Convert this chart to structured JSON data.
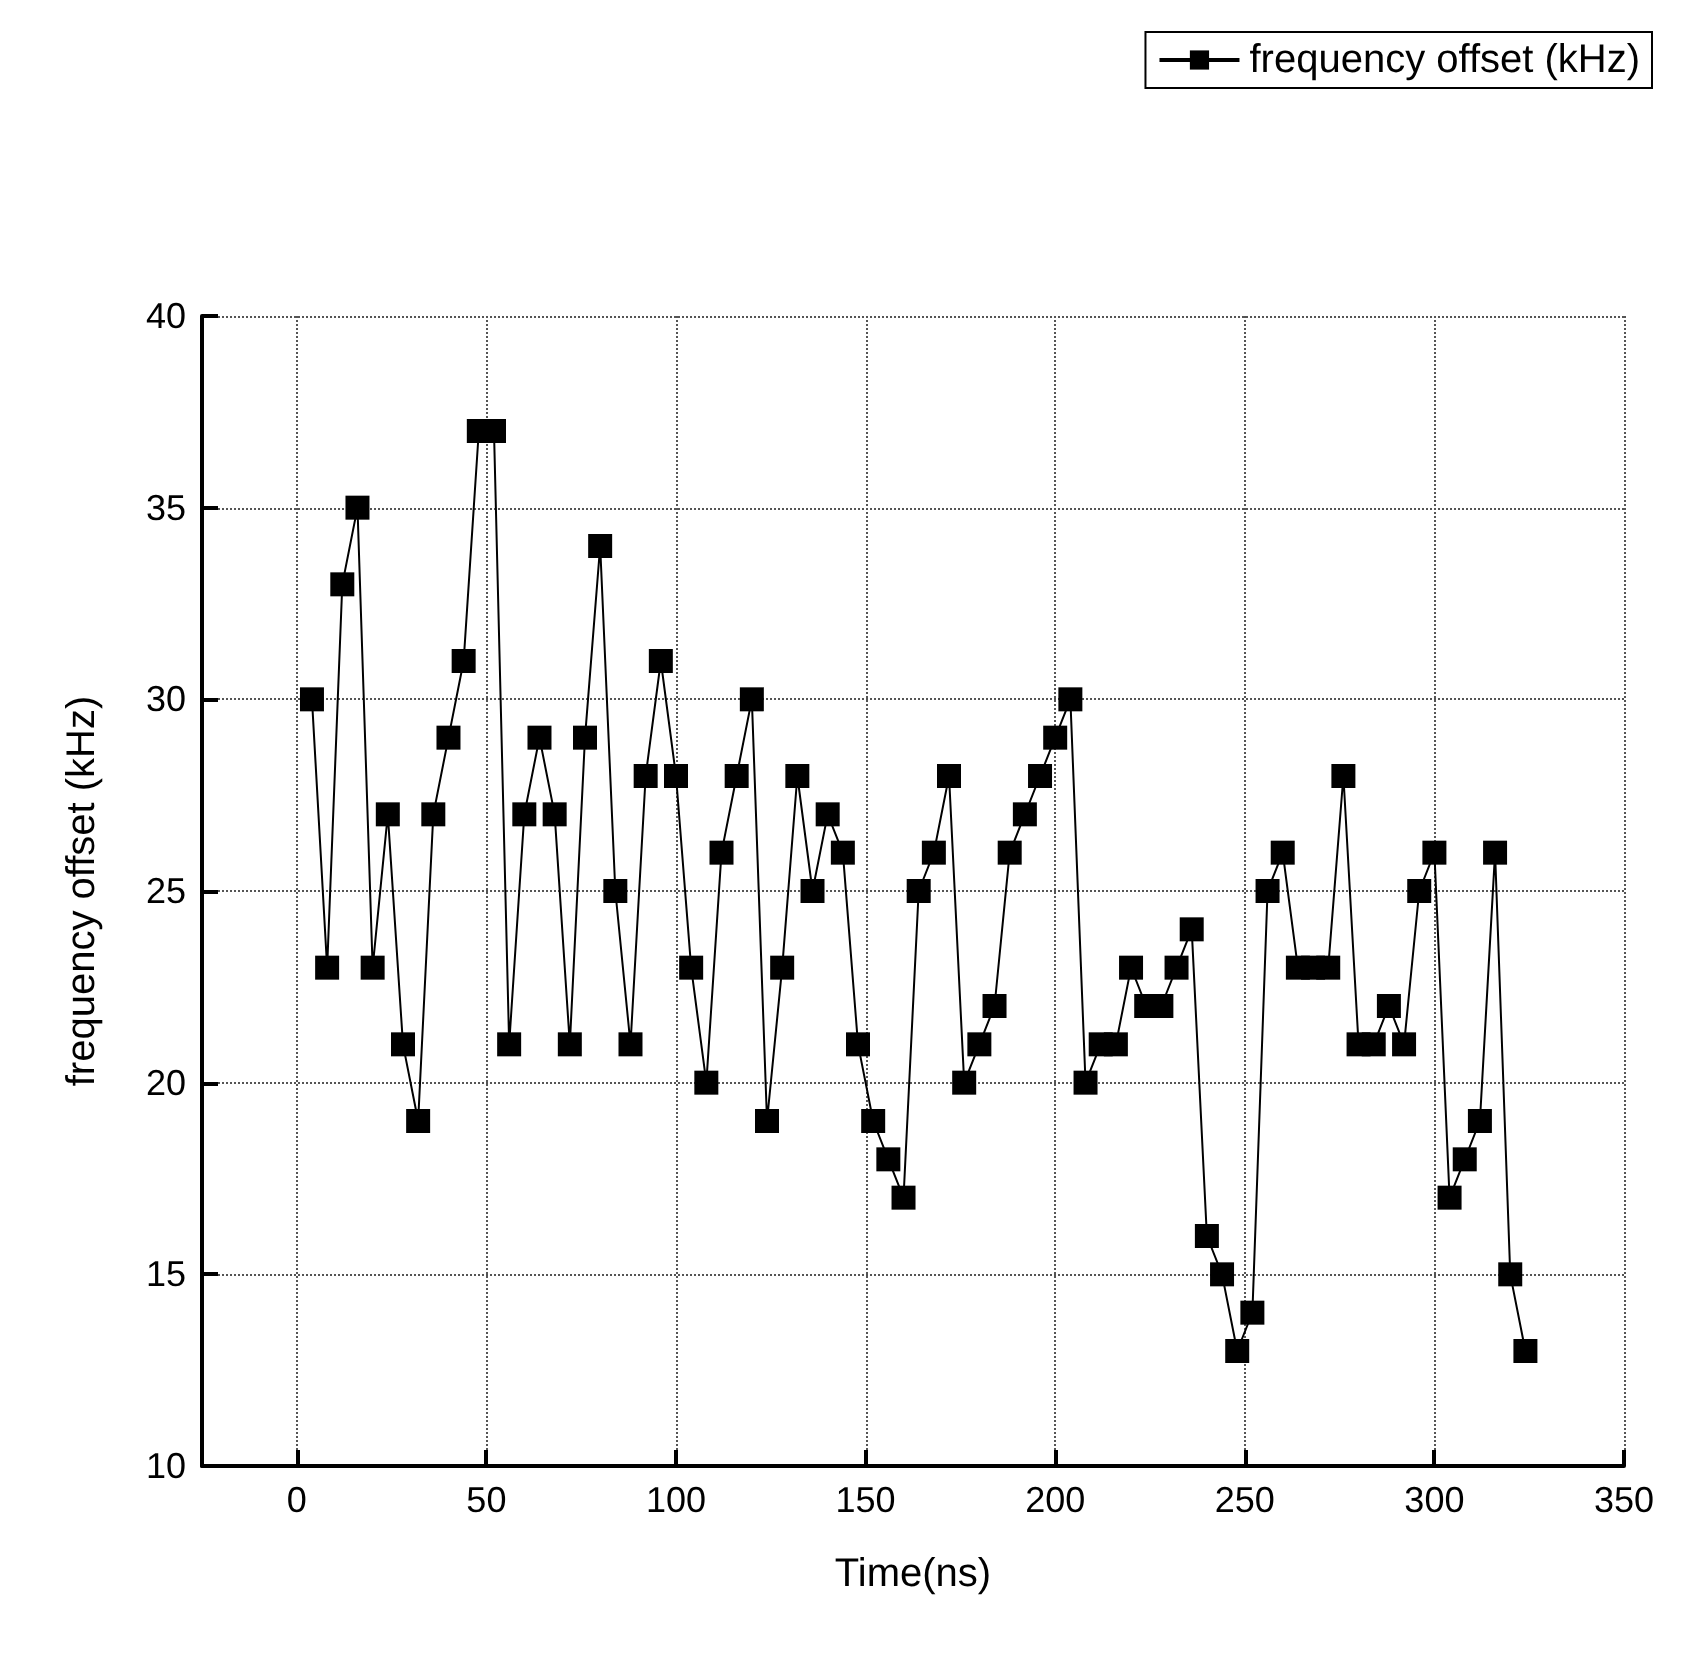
{
  "chart_data": {
    "type": "line",
    "xlabel": "Time(ns)",
    "ylabel": "frequency offset (kHz)",
    "x": [
      4,
      8,
      12,
      16,
      20,
      24,
      28,
      32,
      36,
      40,
      44,
      48,
      52,
      56,
      60,
      64,
      68,
      72,
      76,
      80,
      84,
      88,
      92,
      96,
      100,
      104,
      108,
      112,
      116,
      120,
      124,
      128,
      132,
      136,
      140,
      144,
      148,
      152,
      156,
      160,
      164,
      168,
      172,
      176,
      180,
      184,
      188,
      192,
      196,
      200,
      204,
      208,
      212,
      216,
      220,
      224,
      228,
      232,
      236,
      240,
      244,
      248,
      252,
      256,
      260,
      264,
      268,
      272,
      276,
      280,
      284,
      288,
      292,
      296,
      300,
      304,
      308,
      312,
      316,
      320,
      324
    ],
    "series": [
      {
        "name": "frequency offset (kHz)",
        "color": "#000000",
        "values": [
          30,
          23,
          33,
          35,
          23,
          27,
          21,
          19,
          27,
          29,
          31,
          37,
          37,
          21,
          27,
          29,
          27,
          21,
          29,
          34,
          25,
          21,
          28,
          31,
          28,
          23,
          20,
          26,
          28,
          30,
          19,
          23,
          28,
          25,
          27,
          26,
          21,
          19,
          18,
          17,
          25,
          26,
          28,
          20,
          21,
          22,
          26,
          27,
          28,
          29,
          30,
          20,
          21,
          21,
          23,
          22,
          22,
          23,
          24,
          16,
          15,
          13,
          14,
          25,
          26,
          23,
          23,
          23,
          28,
          21,
          21,
          22,
          21,
          25,
          26,
          17,
          18,
          19,
          26,
          15,
          13
        ]
      }
    ],
    "xlim": [
      -25,
      350
    ],
    "xticks": [
      0,
      50,
      100,
      150,
      200,
      250,
      300,
      350
    ],
    "ylim": [
      10,
      40
    ],
    "yticks": [
      10,
      15,
      20,
      25,
      30,
      35,
      40
    ],
    "grid": true,
    "legend": "top right",
    "marker": "square",
    "line_style": "solid"
  }
}
